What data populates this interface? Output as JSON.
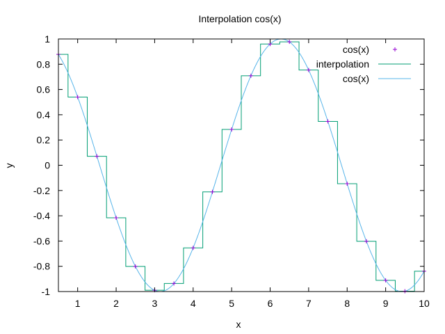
{
  "chart_data": {
    "type": "line",
    "title": "Interpolation cos(x)",
    "xlabel": "x",
    "ylabel": "y",
    "xlim": [
      0.5,
      10
    ],
    "ylim": [
      -1,
      1
    ],
    "x_ticks": [
      "1",
      "2",
      "3",
      "4",
      "5",
      "6",
      "7",
      "8",
      "9",
      "10"
    ],
    "y_ticks": [
      "-1",
      "-0.8",
      "-0.6",
      "-0.4",
      "-0.2",
      "0",
      "0.2",
      "0.4",
      "0.6",
      "0.8",
      "1"
    ],
    "grid": false,
    "legend_position": "top-right",
    "series": [
      {
        "name": "cos(x)",
        "kind": "points",
        "marker": "plus",
        "color": "#9400d3",
        "x": [
          0.5,
          1.0,
          1.5,
          2.0,
          2.5,
          3.0,
          3.5,
          4.0,
          4.5,
          5.0,
          5.5,
          6.0,
          6.5,
          7.0,
          7.5,
          8.0,
          8.5,
          9.0,
          9.5,
          10.0
        ],
        "y": [
          0.878,
          0.54,
          0.071,
          -0.416,
          -0.801,
          -0.99,
          -0.936,
          -0.654,
          -0.211,
          0.284,
          0.709,
          0.96,
          0.977,
          0.754,
          0.347,
          -0.146,
          -0.602,
          -0.911,
          -0.997,
          -0.839
        ]
      },
      {
        "name": "interpolation",
        "kind": "step-mid",
        "color": "#009e73",
        "x": [
          0.5,
          1.0,
          1.5,
          2.0,
          2.5,
          3.0,
          3.5,
          4.0,
          4.5,
          5.0,
          5.5,
          6.0,
          6.5,
          7.0,
          7.5,
          8.0,
          8.5,
          9.0,
          9.5,
          10.0
        ],
        "y": [
          0.878,
          0.54,
          0.071,
          -0.416,
          -0.801,
          -0.99,
          -0.936,
          -0.654,
          -0.211,
          0.284,
          0.709,
          0.96,
          0.977,
          0.754,
          0.347,
          -0.146,
          -0.602,
          -0.911,
          -0.997,
          -0.839
        ]
      },
      {
        "name": "cos(x)",
        "kind": "function",
        "function": "cos",
        "color": "#56b4e9"
      }
    ]
  }
}
